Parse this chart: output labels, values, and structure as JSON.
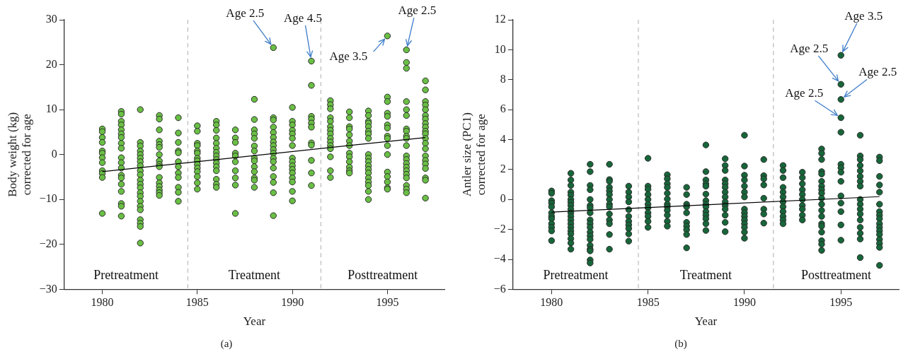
{
  "chart_data": [
    {
      "type": "scatter",
      "xlabel": "Year",
      "ylabel": "Body weight (kg)\ncorrected for age",
      "xlim": [
        1978,
        1998
      ],
      "xticks": [
        1980,
        1985,
        1990,
        1995
      ],
      "ylim": [
        -30,
        30
      ],
      "yticks": [
        {
          "value": -30,
          "label": "−30"
        },
        {
          "value": -20,
          "label": "−20"
        },
        {
          "value": -10,
          "label": "−10"
        },
        0,
        10,
        20,
        30
      ],
      "grid": false,
      "legend": false,
      "ref_lines": [
        {
          "axis": "x",
          "value": 1984.5,
          "color": "#bbbbbb",
          "line_style": "dashed"
        },
        {
          "axis": "x",
          "value": 1991.5,
          "color": "#bbbbbb",
          "line_style": "dashed"
        }
      ],
      "annotations": [
        {
          "text": "Age 2.5",
          "x": 1989,
          "y": 23.8
        },
        {
          "text": "Age 4.5",
          "x": 1991,
          "y": 20.8
        },
        {
          "text": "Age 3.5",
          "x": 1995,
          "y": 26.4
        },
        {
          "text": "Age 2.5",
          "x": 1996,
          "y": 23.3
        },
        "Pretreatment",
        "Treatment",
        "Posttreatment",
        "(a)"
      ],
      "series": [
        {
          "marker": "circle",
          "color": "#6abf45",
          "x": [
            1980,
            1980,
            1980,
            1980,
            1980,
            1980,
            1980,
            1980,
            1980,
            1980,
            1980,
            1980,
            1981,
            1981,
            1981,
            1981,
            1981,
            1981,
            1981,
            1981,
            1981,
            1981,
            1981,
            1981,
            1981,
            1981,
            1981,
            1981,
            1981,
            1981,
            1981,
            1982,
            1982,
            1982,
            1982,
            1982,
            1982,
            1982,
            1982,
            1982,
            1982,
            1982,
            1982,
            1982,
            1982,
            1982,
            1982,
            1982,
            1982,
            1982,
            1982,
            1982,
            1982,
            1983,
            1983,
            1983,
            1983,
            1983,
            1983,
            1983,
            1983,
            1983,
            1983,
            1983,
            1983,
            1983,
            1983,
            1983,
            1983,
            1984,
            1984,
            1984,
            1984,
            1984,
            1984,
            1984,
            1984,
            1984,
            1984,
            1984,
            1984,
            1985,
            1985,
            1985,
            1985,
            1985,
            1985,
            1985,
            1985,
            1985,
            1985,
            1985,
            1985,
            1985,
            1985,
            1986,
            1986,
            1986,
            1986,
            1986,
            1986,
            1986,
            1986,
            1986,
            1986,
            1986,
            1986,
            1986,
            1986,
            1986,
            1987,
            1987,
            1987,
            1987,
            1987,
            1987,
            1987,
            1987,
            1987,
            1987,
            1988,
            1988,
            1988,
            1988,
            1988,
            1988,
            1988,
            1988,
            1988,
            1988,
            1988,
            1988,
            1988,
            1988,
            1989,
            1989,
            1989,
            1989,
            1989,
            1989,
            1989,
            1989,
            1989,
            1989,
            1989,
            1989,
            1989,
            1989,
            1989,
            1989,
            1989,
            1990,
            1990,
            1990,
            1990,
            1990,
            1990,
            1990,
            1990,
            1990,
            1990,
            1990,
            1990,
            1990,
            1990,
            1990,
            1990,
            1991,
            1991,
            1991,
            1991,
            1991,
            1991,
            1991,
            1991,
            1991,
            1991,
            1991,
            1992,
            1992,
            1992,
            1992,
            1992,
            1992,
            1992,
            1992,
            1992,
            1992,
            1992,
            1992,
            1992,
            1992,
            1992,
            1993,
            1993,
            1993,
            1993,
            1993,
            1993,
            1993,
            1993,
            1993,
            1993,
            1993,
            1993,
            1993,
            1994,
            1994,
            1994,
            1994,
            1994,
            1994,
            1994,
            1994,
            1994,
            1994,
            1994,
            1994,
            1994,
            1994,
            1994,
            1994,
            1994,
            1994,
            1994,
            1995,
            1995,
            1995,
            1995,
            1995,
            1995,
            1995,
            1995,
            1995,
            1995,
            1995,
            1995,
            1995,
            1995,
            1995,
            1995,
            1996,
            1996,
            1996,
            1996,
            1996,
            1996,
            1996,
            1996,
            1996,
            1996,
            1996,
            1996,
            1996,
            1996,
            1996,
            1996,
            1996,
            1996,
            1996,
            1996,
            1996,
            1997,
            1997,
            1997,
            1997,
            1997,
            1997,
            1997,
            1997,
            1997,
            1997,
            1997,
            1997,
            1997,
            1997,
            1997,
            1997,
            1997,
            1997,
            1997,
            1997,
            1997
          ],
          "values": [
            5.7,
            5.1,
            3.8,
            2.7,
            0.8,
            0.3,
            -0.7,
            -1.8,
            -3.6,
            -4.2,
            -5.1,
            -13.1,
            9.6,
            9.0,
            7.4,
            6.6,
            5.5,
            4.6,
            3.8,
            2.5,
            1.4,
            -0.7,
            -1.8,
            -3.0,
            -4.6,
            -5.2,
            -6.6,
            -8.2,
            -10.9,
            -11.5,
            -13.7,
            10.0,
            2.7,
            1.9,
            0.8,
            0,
            -0.8,
            -1.6,
            -2.5,
            -3.6,
            -4.5,
            -5.7,
            -6.6,
            -7.4,
            -8.5,
            -9.3,
            -10.4,
            -11.5,
            -12.3,
            -14.5,
            -15.3,
            -16.0,
            -19.7,
            8.7,
            7.9,
            5.5,
            3.0,
            2.2,
            1.6,
            0,
            -1.4,
            -2.2,
            -2.7,
            -5.1,
            -6.3,
            -7.1,
            -7.9,
            -8.5,
            -9.1,
            8.2,
            4.8,
            2.7,
            0.8,
            0.4,
            -1.6,
            -2.7,
            -4.1,
            -5.1,
            -7.3,
            -8.4,
            -10.4,
            6.4,
            5.2,
            2.5,
            2.0,
            0.8,
            0.3,
            -0.8,
            -1.4,
            -2.2,
            -3.0,
            -3.8,
            -4.9,
            -6.3,
            -7.7,
            7.4,
            6.6,
            5.4,
            3.7,
            2.5,
            1.4,
            0.5,
            -0.3,
            -1.1,
            -1.9,
            -2.7,
            -3.6,
            -5.5,
            -6.6,
            -7.3,
            5.5,
            3.7,
            2.7,
            0.3,
            -0.3,
            -1.6,
            -3.6,
            -5.2,
            -6.8,
            -13.1,
            12.3,
            7.8,
            5.5,
            4.6,
            3.6,
            1.9,
            0.8,
            -0.8,
            -1.4,
            -2.7,
            -3.8,
            -5.2,
            -5.7,
            -7.3,
            23.8,
            8.2,
            7.7,
            6.1,
            4.9,
            3.8,
            2.8,
            2.0,
            1.1,
            0.3,
            -0.8,
            -1.6,
            -3.0,
            -4.9,
            -6.2,
            -8.5,
            -13.6,
            10.5,
            7.4,
            6.6,
            5.4,
            4.6,
            3.6,
            2.0,
            -0.8,
            -1.6,
            -2.5,
            -3.3,
            -4.1,
            -5.2,
            -6.1,
            -8.2,
            -10.3,
            20.8,
            15.4,
            8.5,
            7.9,
            7.0,
            6.1,
            2.6,
            2.1,
            -1.3,
            -4.1,
            -6.9,
            12.0,
            11.1,
            10.2,
            8.2,
            7.4,
            6.2,
            5.4,
            4.6,
            3.6,
            2.8,
            2.0,
            1.3,
            -0.5,
            -3.6,
            -5.1,
            9.5,
            8.2,
            6.2,
            5.7,
            4.4,
            3.0,
            2.0,
            0.3,
            -0.5,
            -1.6,
            -2.8,
            -3.6,
            -4.1,
            9.7,
            8.7,
            7.4,
            7.0,
            6.2,
            5.2,
            4.6,
            3.6,
            0,
            -0.8,
            -1.6,
            -2.5,
            -3.3,
            -4.1,
            -5.2,
            -6.1,
            -6.9,
            -8.2,
            -10.0,
            26.4,
            12.8,
            11.8,
            9.2,
            8.5,
            6.6,
            5.9,
            4.1,
            3.6,
            2.0,
            0,
            -3.9,
            -4.9,
            -6.1,
            -7.4,
            -7.7,
            23.3,
            20.5,
            19.2,
            11.8,
            10.0,
            8.7,
            5.7,
            5.2,
            4.1,
            3.6,
            2.0,
            -0.3,
            -1.1,
            -2.0,
            -2.8,
            -3.6,
            -4.4,
            -5.2,
            -6.9,
            -7.7,
            -8.5,
            16.4,
            14.4,
            11.8,
            11.0,
            10.0,
            8.7,
            7.9,
            6.9,
            6.1,
            5.2,
            4.6,
            3.6,
            2.5,
            1.3,
            -0.3,
            -1.3,
            -2.1,
            -3.1,
            -5.2,
            -5.7,
            -9.7
          ]
        },
        {
          "type": "line",
          "color": "#000000",
          "x": [
            1980,
            1997
          ],
          "values": [
            -3.8,
            3.8
          ]
        }
      ]
    },
    {
      "type": "scatter",
      "xlabel": "Year",
      "ylabel": "Antler size (PC1)\ncorrected for age",
      "xlim": [
        1978,
        1998
      ],
      "xticks": [
        1980,
        1985,
        1990,
        1995
      ],
      "ylim": [
        -6,
        12
      ],
      "yticks": [
        {
          "value": -6,
          "label": "−6"
        },
        {
          "value": -4,
          "label": "−4"
        },
        {
          "value": -2,
          "label": "−2"
        },
        0,
        2,
        4,
        6,
        8,
        10,
        12
      ],
      "grid": false,
      "legend": false,
      "ref_lines": [
        {
          "axis": "x",
          "value": 1984.5,
          "color": "#bbbbbb",
          "line_style": "dashed"
        },
        {
          "axis": "x",
          "value": 1991.5,
          "color": "#bbbbbb",
          "line_style": "dashed"
        }
      ],
      "annotations": [
        {
          "text": "Age 3.5",
          "x": 1995,
          "y": 9.63
        },
        {
          "text": "Age 2.5",
          "x": 1995,
          "y": 7.69
        },
        {
          "text": "Age 2.5",
          "x": 1995,
          "y": 6.68
        },
        {
          "text": "Age 2.5",
          "x": 1995,
          "y": 5.46
        },
        "Pretreatment",
        "Treatment",
        "Posttreatment",
        "(b)"
      ],
      "series": [
        {
          "marker": "circle",
          "color": "#17663a",
          "x": [
            1980,
            1980,
            1980,
            1980,
            1980,
            1980,
            1980,
            1980,
            1980,
            1980,
            1980,
            1980,
            1981,
            1981,
            1981,
            1981,
            1981,
            1981,
            1981,
            1981,
            1981,
            1981,
            1981,
            1981,
            1981,
            1981,
            1981,
            1981,
            1981,
            1981,
            1981,
            1982,
            1982,
            1982,
            1982,
            1982,
            1982,
            1982,
            1982,
            1982,
            1982,
            1982,
            1982,
            1982,
            1982,
            1982,
            1982,
            1982,
            1982,
            1982,
            1983,
            1983,
            1983,
            1983,
            1983,
            1983,
            1983,
            1983,
            1983,
            1983,
            1983,
            1983,
            1983,
            1983,
            1984,
            1984,
            1984,
            1984,
            1984,
            1984,
            1984,
            1984,
            1984,
            1984,
            1984,
            1985,
            1985,
            1985,
            1985,
            1985,
            1985,
            1985,
            1985,
            1985,
            1985,
            1985,
            1986,
            1986,
            1986,
            1986,
            1986,
            1986,
            1986,
            1986,
            1986,
            1986,
            1986,
            1986,
            1987,
            1987,
            1987,
            1987,
            1987,
            1987,
            1987,
            1987,
            1987,
            1987,
            1988,
            1988,
            1988,
            1988,
            1988,
            1988,
            1988,
            1988,
            1988,
            1988,
            1988,
            1988,
            1988,
            1988,
            1989,
            1989,
            1989,
            1989,
            1989,
            1989,
            1989,
            1989,
            1989,
            1989,
            1989,
            1989,
            1989,
            1989,
            1990,
            1990,
            1990,
            1990,
            1990,
            1990,
            1990,
            1990,
            1990,
            1990,
            1990,
            1990,
            1990,
            1990,
            1990,
            1991,
            1991,
            1991,
            1991,
            1991,
            1991,
            1991,
            1991,
            1992,
            1992,
            1992,
            1992,
            1992,
            1992,
            1992,
            1992,
            1992,
            1992,
            1992,
            1992,
            1993,
            1993,
            1993,
            1993,
            1993,
            1993,
            1993,
            1993,
            1993,
            1993,
            1994,
            1994,
            1994,
            1994,
            1994,
            1994,
            1994,
            1994,
            1994,
            1994,
            1994,
            1994,
            1994,
            1994,
            1994,
            1994,
            1994,
            1994,
            1994,
            1995,
            1995,
            1995,
            1995,
            1995,
            1995,
            1995,
            1995,
            1995,
            1995,
            1995,
            1995,
            1995,
            1995,
            1996,
            1996,
            1996,
            1996,
            1996,
            1996,
            1996,
            1996,
            1996,
            1996,
            1996,
            1996,
            1996,
            1996,
            1996,
            1996,
            1996,
            1997,
            1997,
            1997,
            1997,
            1997,
            1997,
            1997,
            1997,
            1997,
            1997,
            1997,
            1997,
            1997,
            1997,
            1997,
            1997,
            1997
          ],
          "values": [
            0.57,
            0.41,
            -0.08,
            -0.24,
            -0.49,
            -0.89,
            -1.13,
            -1.29,
            -1.62,
            -1.86,
            -2.1,
            -2.75,
            1.75,
            1.3,
            0.94,
            0.49,
            0.29,
            0,
            -0.19,
            -0.4,
            -0.65,
            -0.89,
            -1.13,
            -1.37,
            -1.62,
            -1.86,
            -2.1,
            -2.3,
            -2.62,
            -2.91,
            -3.32,
            2.35,
            1.86,
            0.94,
            0.65,
            0,
            -0.4,
            -0.56,
            -0.89,
            -1.37,
            -1.62,
            -1.86,
            -2.18,
            -2.43,
            -2.67,
            -3.07,
            -3.32,
            -3.43,
            -4.04,
            -4.24,
            2.35,
            1.33,
            1.21,
            0.81,
            0.57,
            0.33,
            0,
            -0.32,
            -0.49,
            -0.97,
            -1.37,
            -1.62,
            -2.34,
            -3.32,
            0.89,
            0.49,
            0.17,
            -0.16,
            -0.68,
            -1.13,
            -1.46,
            -1.7,
            -1.94,
            -2.3,
            -2.78,
            2.75,
            0.89,
            0.68,
            0.33,
            0,
            -0.32,
            -0.56,
            -0.89,
            -1.13,
            -1.46,
            -1.86,
            1.65,
            1.38,
            1.05,
            0.81,
            0.41,
            0.03,
            -0.32,
            -0.49,
            -0.73,
            -1.05,
            -1.46,
            -1.78,
            0.81,
            0.33,
            -0.32,
            -0.49,
            -0.89,
            -1.53,
            -1.78,
            -2.02,
            -2.34,
            -3.23,
            3.64,
            1.86,
            1.3,
            1.05,
            0.89,
            0.36,
            -0.08,
            -0.32,
            -0.49,
            -0.81,
            -1.05,
            -1.29,
            -1.62,
            -2.07,
            2.72,
            2.27,
            1.94,
            1.3,
            1.05,
            0.81,
            0.49,
            0.17,
            -0.16,
            -0.4,
            -0.65,
            -1.05,
            -1.53,
            -2.15,
            4.29,
            2.23,
            1.62,
            1.3,
            0.89,
            0.49,
            0.17,
            -0.65,
            -0.89,
            -1.13,
            -1.37,
            -1.62,
            -1.86,
            -2.18,
            -2.59,
            2.67,
            1.59,
            1.38,
            0.97,
            0.08,
            -0.65,
            -0.97,
            -1.58,
            2.27,
            1.94,
            1.46,
            0.81,
            0.49,
            0.17,
            -0.16,
            -0.49,
            -0.81,
            -1.13,
            -1.37,
            -1.62,
            1.82,
            1.46,
            1.05,
            0.65,
            0.33,
            0,
            -0.4,
            -0.65,
            -1.05,
            -1.37,
            3.37,
            3.08,
            2.67,
            1.86,
            1.7,
            1.21,
            0.89,
            0.65,
            0.41,
            0.08,
            -0.32,
            -0.73,
            -1.13,
            -1.62,
            -1.78,
            -2.18,
            -2.75,
            -2.99,
            -3.4,
            9.63,
            7.69,
            6.68,
            5.46,
            4.49,
            2.35,
            2.11,
            1.82,
            1.21,
            0.24,
            -0.24,
            -0.81,
            -1.7,
            -2.72,
            4.29,
            2.91,
            2.67,
            2.27,
            1.91,
            1.54,
            1.21,
            0.89,
            0,
            -0.32,
            -0.65,
            -0.97,
            -1.37,
            -1.86,
            -2.26,
            -2.64,
            -3.88,
            2.83,
            2.59,
            1.54,
            0.97,
            0.49,
            -0.32,
            -0.81,
            -1.05,
            -1.29,
            -1.62,
            -1.86,
            -2.1,
            -2.34,
            -2.67,
            -2.94,
            -3.2,
            -4.4
          ]
        },
        {
          "type": "line",
          "color": "#000000",
          "x": [
            1980,
            1997
          ],
          "values": [
            -0.84,
            0.19
          ]
        }
      ]
    }
  ]
}
